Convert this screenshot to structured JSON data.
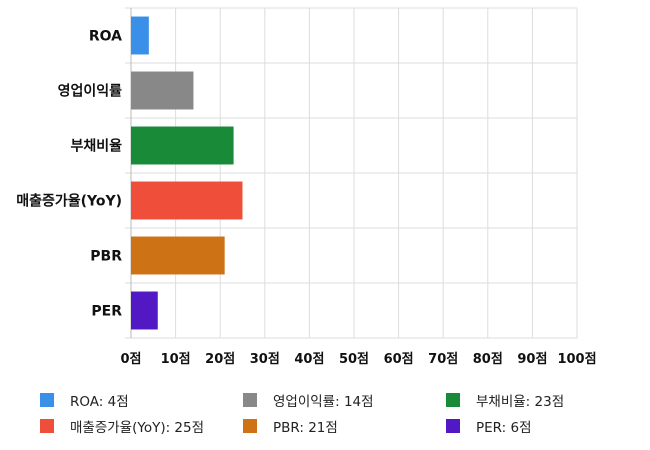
{
  "chart_data": {
    "type": "bar",
    "orientation": "horizontal",
    "title": "",
    "xlabel": "",
    "ylabel": "",
    "categories": [
      "ROA",
      "영업이익률",
      "부채비율",
      "매출증가율(YoY)",
      "PBR",
      "PER"
    ],
    "values": [
      4,
      14,
      23,
      25,
      21,
      6
    ],
    "colors": [
      "#3a8fe8",
      "#888888",
      "#198a37",
      "#ef4f3a",
      "#cd7316",
      "#5218c4"
    ],
    "xlim": [
      0,
      100
    ],
    "x_ticks": [
      0,
      10,
      20,
      30,
      40,
      50,
      60,
      70,
      80,
      90,
      100
    ],
    "x_tick_labels": [
      "0점",
      "10점",
      "20점",
      "30점",
      "40점",
      "50점",
      "60점",
      "70점",
      "80점",
      "90점",
      "100점"
    ],
    "grid": true,
    "legend_position": "bottom",
    "legend": [
      {
        "label": "ROA: 4점",
        "color": "#3a8fe8"
      },
      {
        "label": "영업이익률: 14점",
        "color": "#888888"
      },
      {
        "label": "부채비율: 23점",
        "color": "#198a37"
      },
      {
        "label": "매출증가율(YoY): 25점",
        "color": "#ef4f3a"
      },
      {
        "label": "PBR: 21점",
        "color": "#cd7316"
      },
      {
        "label": "PER: 6점",
        "color": "#5218c4"
      }
    ]
  }
}
